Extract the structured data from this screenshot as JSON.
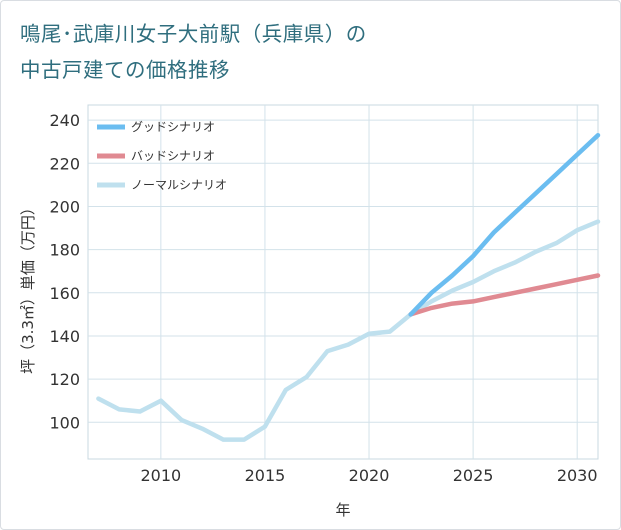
{
  "title": {
    "line1": "鳴尾･武庫川女子大前駅（兵庫県）の",
    "line2": "中古戸建ての価格推移"
  },
  "chart_data": {
    "type": "line",
    "title": "鳴尾･武庫川女子大前駅（兵庫県）の中古戸建ての価格推移",
    "xlabel": "年",
    "ylabel": "坪（3.3㎡）単価（万円）",
    "xlim": [
      2006.5,
      2031
    ],
    "ylim": [
      83,
      247
    ],
    "x_ticks": [
      2010,
      2015,
      2020,
      2025,
      2030
    ],
    "y_ticks": [
      100,
      120,
      140,
      160,
      180,
      200,
      220,
      240
    ],
    "grid": true,
    "legend_position": "top-left",
    "series": [
      {
        "name": "グッドシナリオ",
        "color": "#6bbdf0",
        "x": [
          2022,
          2023,
          2024,
          2025,
          2026,
          2027,
          2028,
          2029,
          2030,
          2031
        ],
        "y": [
          150,
          160,
          168,
          177,
          188,
          197,
          206,
          215,
          224,
          233
        ]
      },
      {
        "name": "バッドシナリオ",
        "color": "#e08a92",
        "x": [
          2022,
          2023,
          2024,
          2025,
          2026,
          2027,
          2028,
          2029,
          2030,
          2031
        ],
        "y": [
          150,
          153,
          155,
          156,
          158,
          160,
          162,
          164,
          166,
          168
        ]
      },
      {
        "name": "ノーマルシナリオ",
        "color": "#bfe0ee",
        "x": [
          2007,
          2008,
          2009,
          2010,
          2011,
          2012,
          2013,
          2014,
          2015,
          2016,
          2017,
          2018,
          2019,
          2020,
          2021,
          2022,
          2023,
          2024,
          2025,
          2026,
          2027,
          2028,
          2029,
          2030,
          2031
        ],
        "y": [
          111,
          106,
          105,
          110,
          101,
          97,
          92,
          92,
          98,
          115,
          121,
          133,
          136,
          141,
          142,
          150,
          156,
          161,
          165,
          170,
          174,
          179,
          183,
          189,
          193
        ]
      }
    ]
  }
}
